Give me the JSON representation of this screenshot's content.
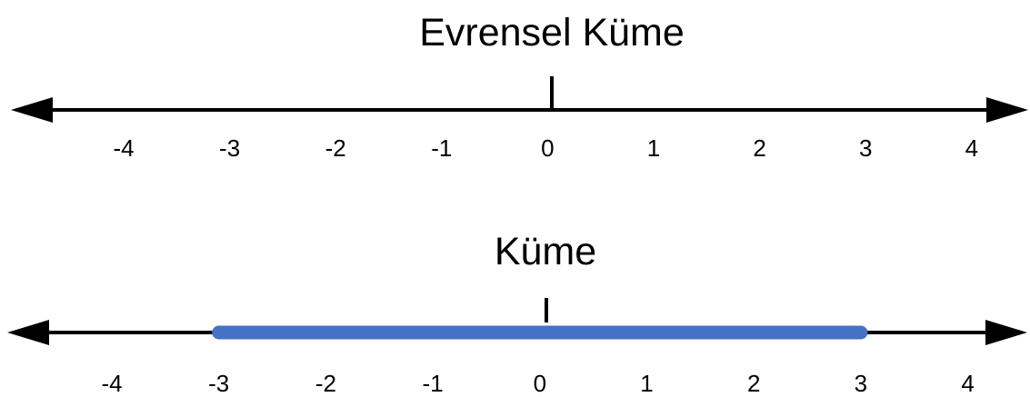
{
  "colors": {
    "axis": "#000000",
    "highlight": "#4472c4",
    "background": "#ffffff"
  },
  "lines": [
    {
      "title": "Evrensel Küme",
      "tick_labels": [
        "-4",
        "-3",
        "-2",
        "-1",
        "0",
        "1",
        "2",
        "3",
        "4"
      ],
      "tick_values": [
        -4,
        -3,
        -2,
        -1,
        0,
        1,
        2,
        3,
        4
      ],
      "arrows": "both",
      "highlight": null
    },
    {
      "title": "Küme",
      "tick_labels": [
        "-4",
        "-3",
        "-2",
        "-1",
        "0",
        "1",
        "2",
        "3",
        "4"
      ],
      "tick_values": [
        -4,
        -3,
        -2,
        -1,
        0,
        1,
        2,
        3,
        4
      ],
      "arrows": "both",
      "highlight": {
        "from": -3,
        "to": 3
      }
    }
  ]
}
